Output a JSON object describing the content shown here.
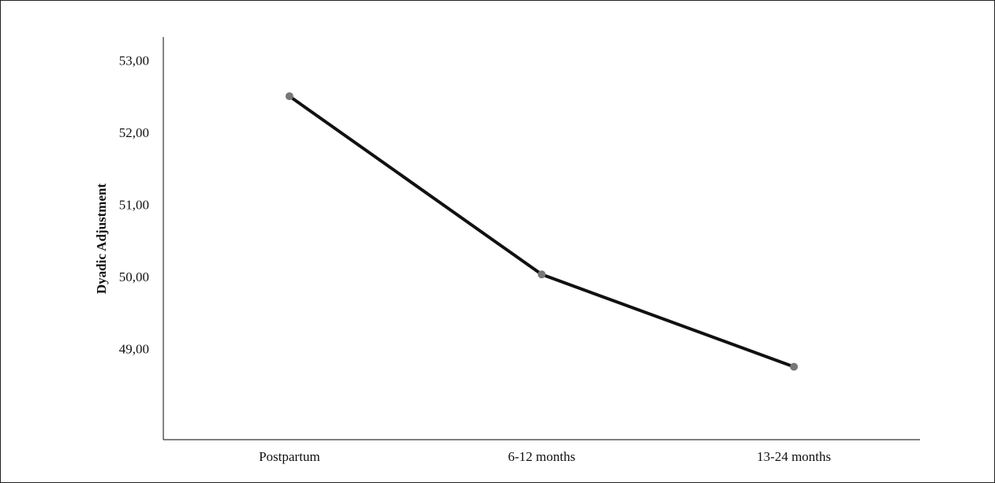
{
  "chart_data": {
    "type": "line",
    "title": "",
    "xlabel": "",
    "ylabel": "Dyadic Adjustment",
    "categories": [
      "Postpartum",
      "6-12 months",
      "13-24 months"
    ],
    "series": [
      {
        "values": [
          52.5,
          50.03,
          48.75
        ]
      }
    ],
    "ylim": [
      47.74,
      53.32
    ],
    "yticks": [
      49,
      50,
      51,
      52,
      53
    ],
    "ytick_labels": [
      "49,00",
      "50,00",
      "51,00",
      "52,00",
      "53,00"
    ],
    "grid": false,
    "legend": "none",
    "colors": {
      "line": "#111111",
      "marker": "#777777",
      "axis": "#333333"
    }
  }
}
